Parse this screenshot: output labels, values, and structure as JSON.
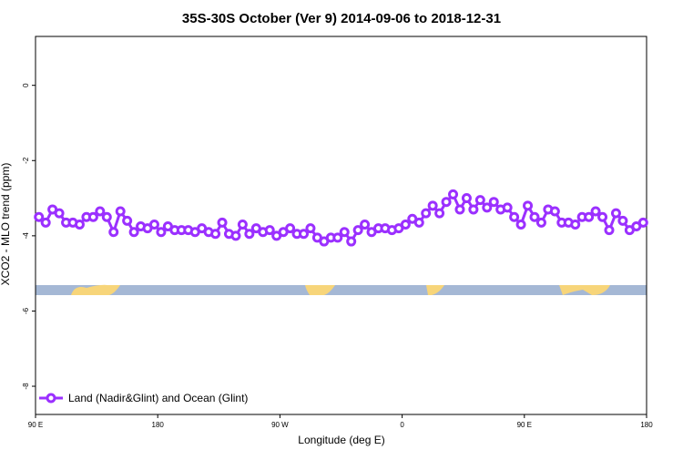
{
  "chart_data": {
    "type": "line",
    "title": "35S-30S October (Ver 9)   2014-09-06 to 2018-12-31",
    "x_label": "Longitude (deg E)",
    "y_label": "XCO2 - MLO trend (ppm)",
    "x": [
      92.5,
      97.5,
      102.5,
      107.5,
      112.5,
      117.5,
      122.5,
      127.5,
      132.5,
      137.5,
      142.5,
      147.5,
      152.5,
      157.5,
      162.5,
      167.5,
      172.5,
      177.5,
      182.5,
      187.5,
      192.5,
      197.5,
      202.5,
      207.5,
      212.5,
      217.5,
      222.5,
      227.5,
      232.5,
      237.5,
      242.5,
      247.5,
      252.5,
      257.5,
      262.5,
      267.5,
      272.5,
      277.5,
      282.5,
      287.5,
      292.5,
      297.5,
      302.5,
      307.5,
      312.5,
      317.5,
      322.5,
      327.5,
      332.5,
      337.5,
      342.5,
      347.5,
      352.5,
      357.5,
      362.5,
      367.5,
      372.5,
      377.5,
      382.5,
      387.5,
      392.5,
      397.5,
      402.5,
      407.5,
      412.5,
      417.5,
      422.5,
      427.5,
      432.5,
      437.5,
      442.5,
      447.5,
      452.5,
      457.5,
      462.5,
      467.5,
      472.5,
      477.5,
      482.5,
      487.5,
      492.5,
      497.5,
      502.5,
      507.5,
      512.5,
      517.5,
      522.5,
      527.5,
      532.5,
      537.5
    ],
    "series": [
      {
        "name": "Land (Nadir&Glint) and Ocean (Glint)",
        "color": "#9b30ff",
        "values": [
          -3.5,
          -3.65,
          -3.3,
          -3.4,
          -3.65,
          -3.65,
          -3.7,
          -3.5,
          -3.5,
          -3.35,
          -3.5,
          -3.9,
          -3.35,
          -3.6,
          -3.9,
          -3.75,
          -3.8,
          -3.7,
          -3.9,
          -3.75,
          -3.85,
          -3.85,
          -3.85,
          -3.9,
          -3.8,
          -3.9,
          -3.95,
          -3.65,
          -3.95,
          -4.0,
          -3.7,
          -3.95,
          -3.8,
          -3.9,
          -3.85,
          -4.0,
          -3.9,
          -3.8,
          -3.95,
          -3.95,
          -3.8,
          -4.05,
          -4.15,
          -4.05,
          -4.05,
          -3.9,
          -4.15,
          -3.85,
          -3.7,
          -3.9,
          -3.8,
          -3.8,
          -3.85,
          -3.8,
          -3.7,
          -3.55,
          -3.65,
          -3.4,
          -3.2,
          -3.4,
          -3.1,
          -2.9,
          -3.3,
          -3.0,
          -3.3,
          -3.05,
          -3.25,
          -3.1,
          -3.3,
          -3.25,
          -3.5,
          -3.7,
          -3.2,
          -3.5,
          -3.65,
          -3.3,
          -3.35,
          -3.65,
          -3.65,
          -3.7,
          -3.5,
          -3.5,
          -3.35,
          -3.5,
          -3.85,
          -3.4,
          -3.6,
          -3.85,
          -3.75,
          -3.65
        ]
      }
    ],
    "xlim": [
      90,
      540
    ],
    "xticks": [
      {
        "value": 90,
        "label": "90 E"
      },
      180,
      {
        "value": 270,
        "label": "90 W"
      },
      {
        "value": 360,
        "label": "0"
      },
      {
        "value": 450,
        "label": "90 E"
      },
      {
        "value": 540,
        "label": "180"
      }
    ],
    "ylim": [
      -8.75,
      1.3
    ],
    "yticks": [
      0,
      -2,
      -4,
      -6,
      -8
    ],
    "legend": "bottomleft"
  }
}
